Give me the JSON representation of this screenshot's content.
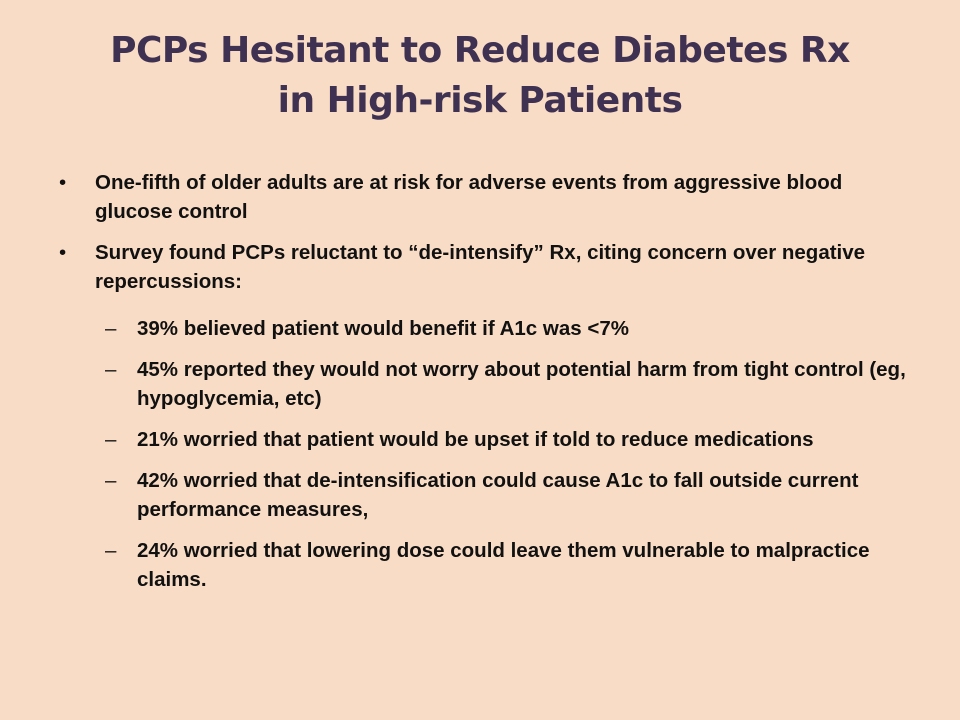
{
  "slide": {
    "background": "#f9dcc5",
    "title_color": "#3f3151",
    "title_line1": "PCPs Hesitant to Reduce Diabetes Rx",
    "title_line2": "in High-risk Patients",
    "bullet_marker": "•",
    "sub_marker": "–",
    "bullets": [
      {
        "text": "One-fifth of older adults are at risk for adverse events from aggressive blood glucose control"
      },
      {
        "text": "Survey found PCPs reluctant to “de-intensify” Rx, citing concern over negative repercussions:"
      }
    ],
    "sub_bullets": [
      {
        "text": "39% believed patient would benefit if A1c was <7%"
      },
      {
        "text": "45% reported they would not worry about potential harm from tight control (eg, hypoglycemia, etc)"
      },
      {
        "text": "21% worried that patient would be upset if told to reduce medications"
      },
      {
        "text": "42% worried that de-intensification could cause A1c to fall outside current performance measures,"
      },
      {
        "text": "24% worried that lowering dose could leave them vulnerable to malpractice claims."
      }
    ]
  }
}
